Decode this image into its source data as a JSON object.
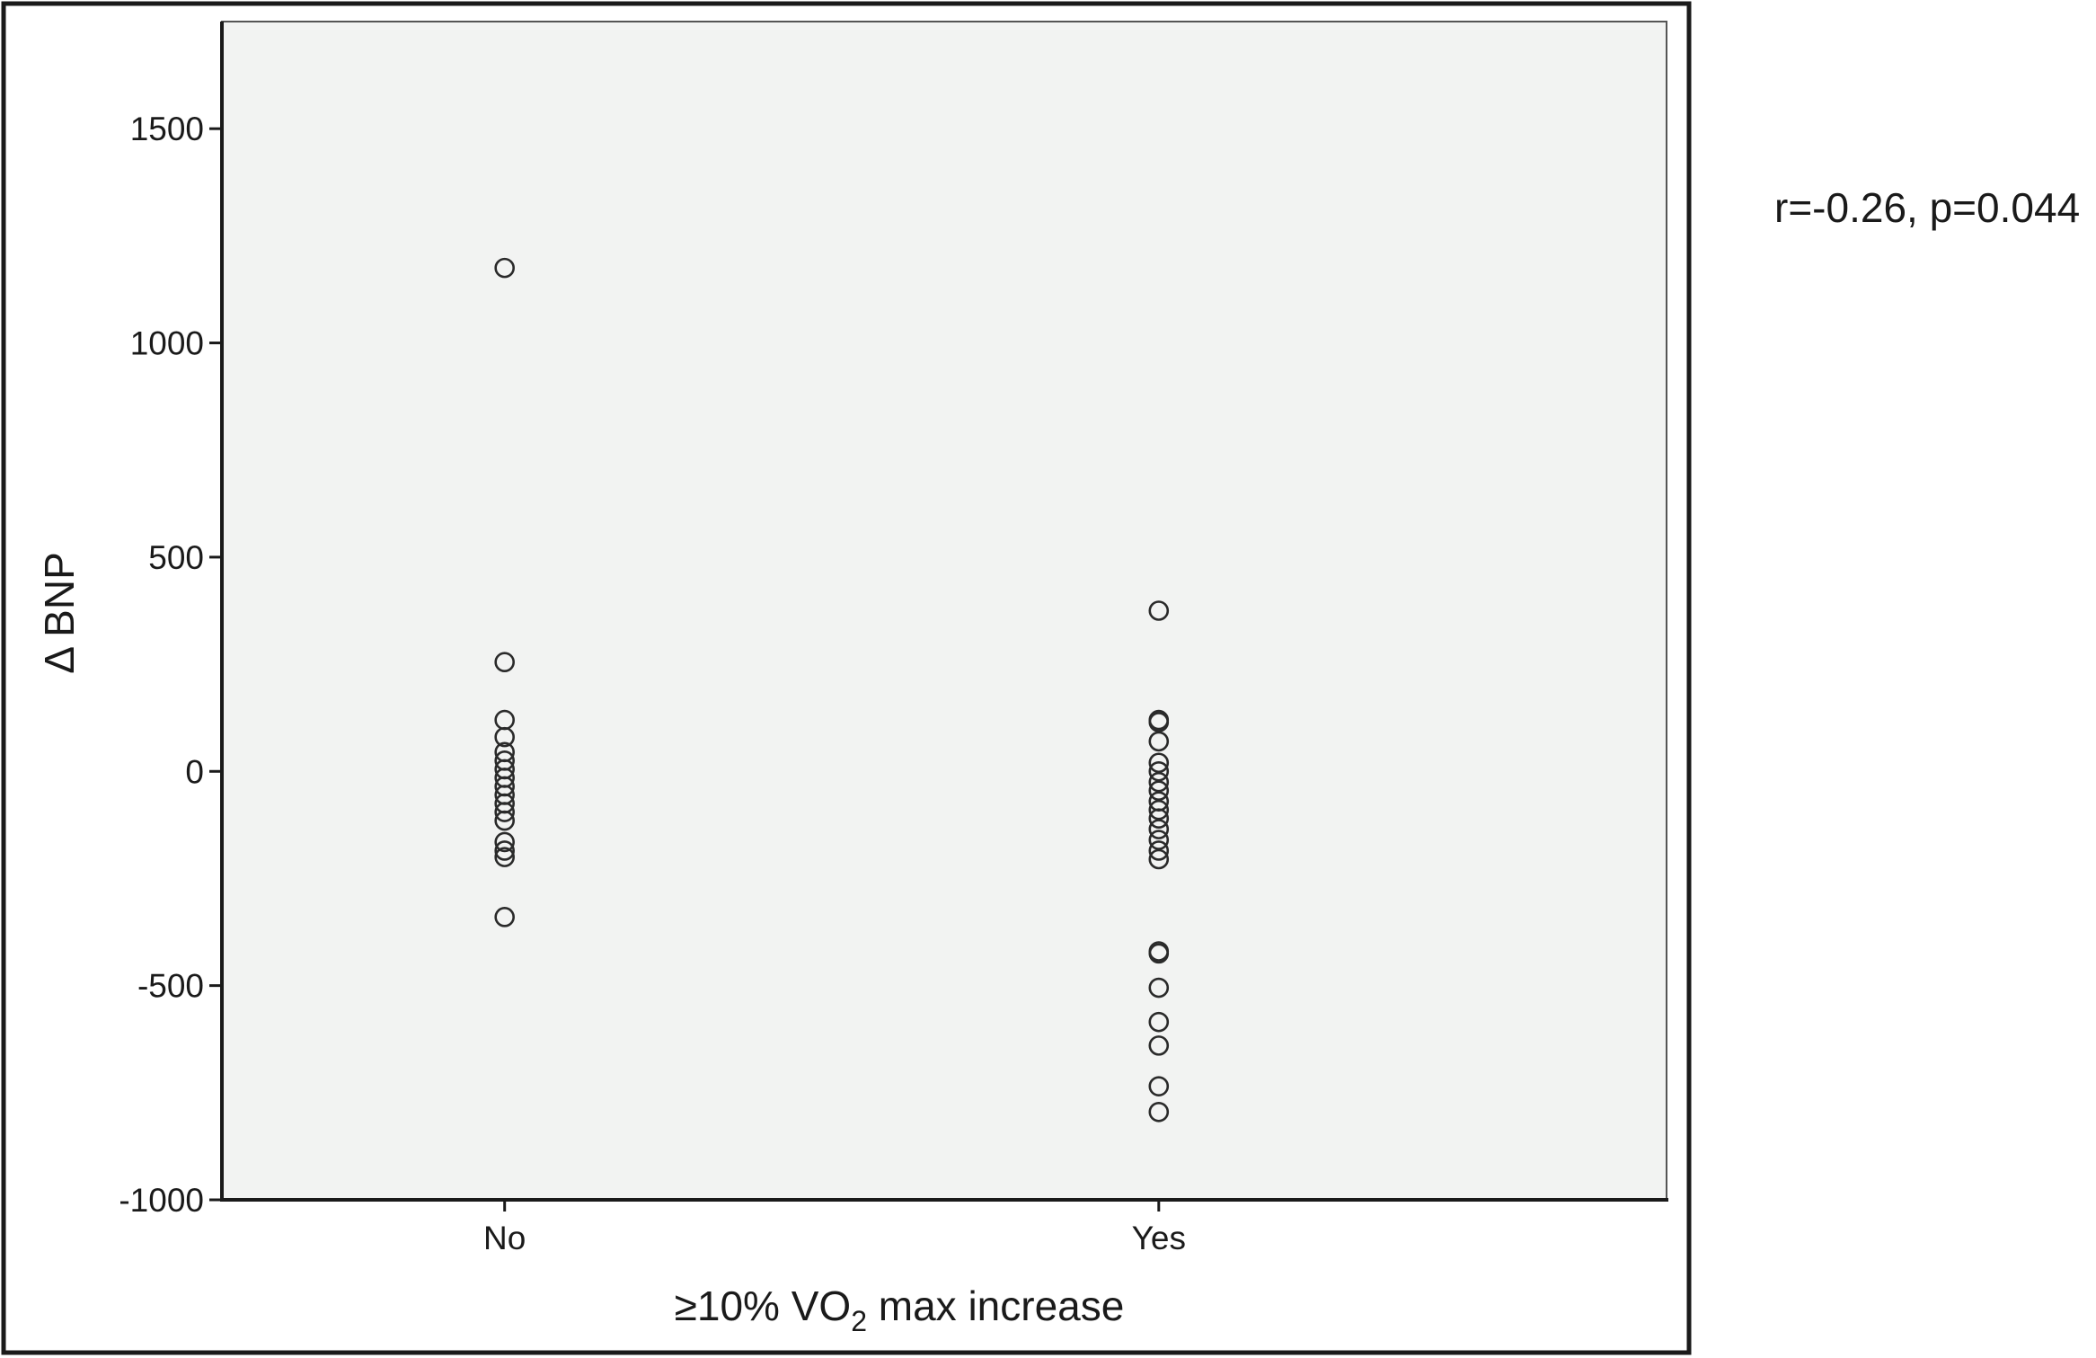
{
  "chart_data": {
    "type": "scatter",
    "title": "",
    "xlabel": {
      "prefix": "≥10% VO",
      "subscript": "2",
      "suffix": " max increase"
    },
    "ylabel": "Δ BNP",
    "categories": [
      "No",
      "Yes"
    ],
    "ylim": [
      -1000,
      1750
    ],
    "yticks": [
      -1000,
      -500,
      0,
      500,
      1000,
      1500
    ],
    "grid": false,
    "legend": "none",
    "annotation": "r=-0.26, p=0.044",
    "colors": {
      "plot_background": "#f2f3f2",
      "marker": "#2a2a2a",
      "axis": "#1a1a1a"
    },
    "points": [
      {
        "x": "No",
        "y": 1175
      },
      {
        "x": "No",
        "y": 255
      },
      {
        "x": "No",
        "y": 120
      },
      {
        "x": "No",
        "y": 80
      },
      {
        "x": "No",
        "y": 45
      },
      {
        "x": "No",
        "y": 25
      },
      {
        "x": "No",
        "y": 5
      },
      {
        "x": "No",
        "y": -15
      },
      {
        "x": "No",
        "y": -35
      },
      {
        "x": "No",
        "y": -55
      },
      {
        "x": "No",
        "y": -75
      },
      {
        "x": "No",
        "y": -95
      },
      {
        "x": "No",
        "y": -115
      },
      {
        "x": "No",
        "y": -165
      },
      {
        "x": "No",
        "y": -185
      },
      {
        "x": "No",
        "y": -200
      },
      {
        "x": "No",
        "y": -340
      },
      {
        "x": "Yes",
        "y": 375
      },
      {
        "x": "Yes",
        "y": 120
      },
      {
        "x": "Yes",
        "y": 115
      },
      {
        "x": "Yes",
        "y": 70
      },
      {
        "x": "Yes",
        "y": 20
      },
      {
        "x": "Yes",
        "y": 0
      },
      {
        "x": "Yes",
        "y": -25
      },
      {
        "x": "Yes",
        "y": -45
      },
      {
        "x": "Yes",
        "y": -70
      },
      {
        "x": "Yes",
        "y": -90
      },
      {
        "x": "Yes",
        "y": -110
      },
      {
        "x": "Yes",
        "y": -135
      },
      {
        "x": "Yes",
        "y": -160
      },
      {
        "x": "Yes",
        "y": -185
      },
      {
        "x": "Yes",
        "y": -205
      },
      {
        "x": "Yes",
        "y": -420
      },
      {
        "x": "Yes",
        "y": -425
      },
      {
        "x": "Yes",
        "y": -505
      },
      {
        "x": "Yes",
        "y": -585
      },
      {
        "x": "Yes",
        "y": -640
      },
      {
        "x": "Yes",
        "y": -735
      },
      {
        "x": "Yes",
        "y": -795
      }
    ]
  }
}
